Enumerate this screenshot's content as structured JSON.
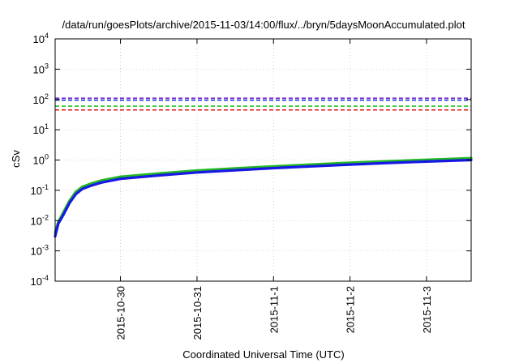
{
  "chart_data": {
    "type": "line",
    "title": "/data/run/goesPlots/archive/2015-11-03/14:00/flux/../bryn/5daysMoonAccumulated.plot",
    "xlabel": "Coordinated Universal Time (UTC)",
    "ylabel": "cSv",
    "y_scale": "log",
    "ylim": [
      0.0001,
      10000
    ],
    "y_ticks": [
      {
        "value": 0.0001,
        "base": "10",
        "exp": "-4"
      },
      {
        "value": 0.001,
        "base": "10",
        "exp": "-3"
      },
      {
        "value": 0.01,
        "base": "10",
        "exp": "-2"
      },
      {
        "value": 0.1,
        "base": "10",
        "exp": "-1"
      },
      {
        "value": 1,
        "base": "10",
        "exp": "0"
      },
      {
        "value": 10,
        "base": "10",
        "exp": "1"
      },
      {
        "value": 100,
        "base": "10",
        "exp": "2"
      },
      {
        "value": 1000,
        "base": "10",
        "exp": "3"
      },
      {
        "value": 10000,
        "base": "10",
        "exp": "4"
      }
    ],
    "x_unit": "day",
    "xlim": [
      "2015-10-29T03:30",
      "2015-11-03T14:00"
    ],
    "x_ticks": [
      {
        "value": "2015-10-30",
        "label": "2015-10-30"
      },
      {
        "value": "2015-10-31",
        "label": "2015-10-31"
      },
      {
        "value": "2015-11-01",
        "label": "2015-11-1"
      },
      {
        "value": "2015-11-02",
        "label": "2015-11-2"
      },
      {
        "value": "2015-11-03",
        "label": "2015-11-3"
      }
    ],
    "grid": true,
    "reference_lines": [
      {
        "y": 110,
        "color": "#7a2bd6",
        "style": "dashed"
      },
      {
        "y": 95,
        "color": "#1b2fd6",
        "style": "dashed"
      },
      {
        "y": 60,
        "color": "#1fc21f",
        "style": "dashed"
      },
      {
        "y": 45,
        "color": "#e01b1b",
        "style": "dashed"
      }
    ],
    "series": [
      {
        "color": "#22b822",
        "x": [
          "2015-10-29T03:30",
          "2015-10-29T04:30",
          "2015-10-29T06:00",
          "2015-10-29T08:00",
          "2015-10-29T10:00",
          "2015-10-29T12:00",
          "2015-10-29T15:00",
          "2015-10-29T18:00",
          "2015-10-30T00:00",
          "2015-10-30T12:00",
          "2015-10-31T00:00",
          "2015-10-31T12:00",
          "2015-11-01T00:00",
          "2015-11-01T12:00",
          "2015-11-02T00:00",
          "2015-11-02T12:00",
          "2015-11-03T00:00",
          "2015-11-03T14:00"
        ],
        "values": [
          0.004,
          0.009,
          0.018,
          0.045,
          0.09,
          0.13,
          0.17,
          0.21,
          0.28,
          0.36,
          0.45,
          0.53,
          0.62,
          0.71,
          0.81,
          0.91,
          1.02,
          1.15
        ]
      },
      {
        "color": "#1818e6",
        "x": [
          "2015-10-29T03:30",
          "2015-10-29T04:30",
          "2015-10-29T06:00",
          "2015-10-29T08:00",
          "2015-10-29T10:00",
          "2015-10-29T12:00",
          "2015-10-29T15:00",
          "2015-10-29T18:00",
          "2015-10-30T00:00",
          "2015-10-30T12:00",
          "2015-10-31T00:00",
          "2015-10-31T12:00",
          "2015-11-01T00:00",
          "2015-11-01T12:00",
          "2015-11-02T00:00",
          "2015-11-02T12:00",
          "2015-11-03T00:00",
          "2015-11-03T14:00"
        ],
        "values": [
          0.003,
          0.008,
          0.015,
          0.038,
          0.075,
          0.11,
          0.145,
          0.18,
          0.24,
          0.31,
          0.39,
          0.46,
          0.54,
          0.62,
          0.71,
          0.8,
          0.89,
          1.0
        ]
      }
    ]
  }
}
